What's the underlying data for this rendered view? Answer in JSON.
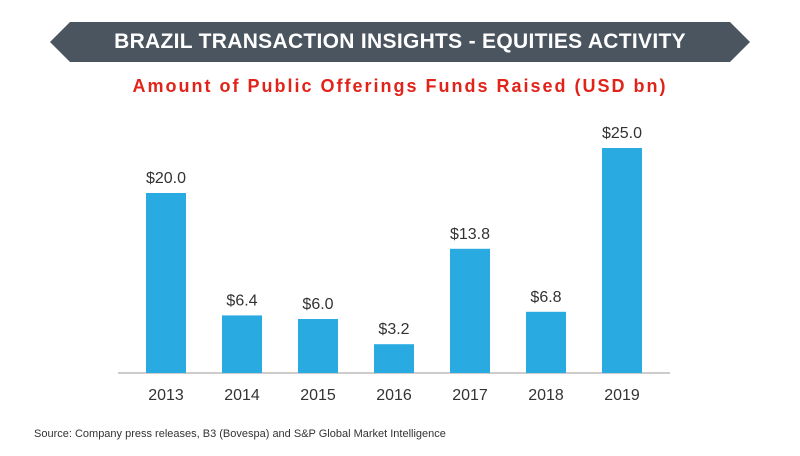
{
  "header": {
    "title": "BRAZIL TRANSACTION INSIGHTS - EQUITIES ACTIVITY"
  },
  "footer": {
    "source": "Source: Company press releases, B3 (Bovespa) and S&P Global Market Intelligence"
  },
  "colors": {
    "banner": "#4a5560",
    "title_red": "#e2231a",
    "bar": "#29abe2",
    "axis": "#999999",
    "text": "#333333"
  },
  "chart_data": {
    "type": "bar",
    "title": "Amount of Public Offerings Funds Raised (USD bn)",
    "xlabel": "",
    "ylabel": "",
    "categories": [
      "2013",
      "2014",
      "2015",
      "2016",
      "2017",
      "2018",
      "2019"
    ],
    "values": [
      20.0,
      6.4,
      6.0,
      3.2,
      13.8,
      6.8,
      25.0
    ],
    "data_labels": [
      "$20.0",
      "$6.4",
      "$6.0",
      "$3.2",
      "$13.8",
      "$6.8",
      "$25.0"
    ],
    "ylim": [
      0,
      25
    ],
    "grid": false,
    "legend": "none"
  }
}
